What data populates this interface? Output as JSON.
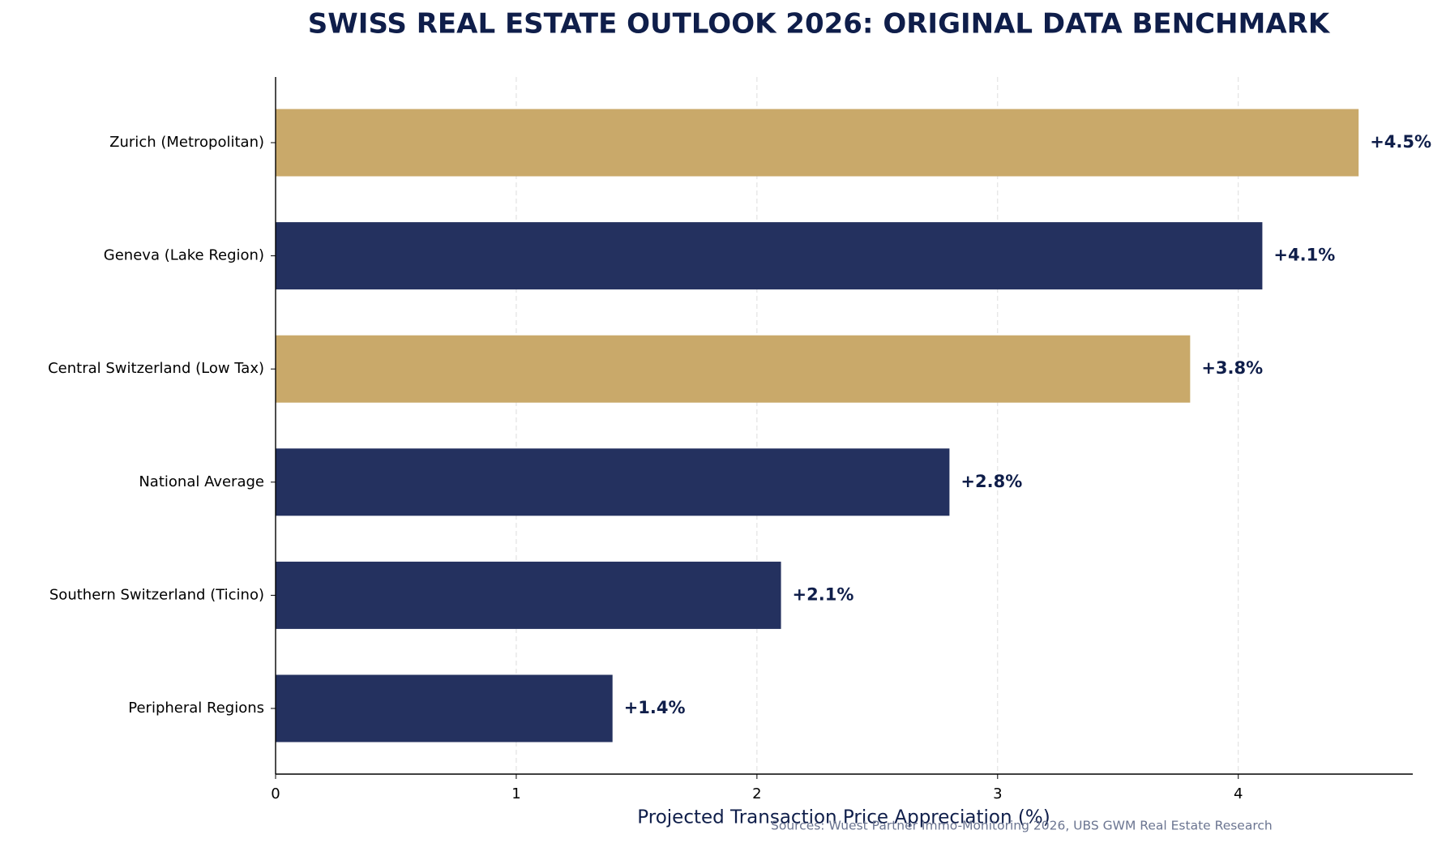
{
  "chart_data": {
    "type": "hbar",
    "title": "SWISS REAL ESTATE OUTLOOK 2026: ORIGINAL DATA BENCHMARK",
    "x_label": "Projected Transaction Price Appreciation (%)",
    "source": "Sources: Wuest Partner Immo-Monitoring 2026, UBS GWM Real Estate Research",
    "categories": [
      "Zurich (Metropolitan)",
      "Geneva (Lake Region)",
      "Central Switzerland (Low Tax)",
      "National Average",
      "Southern Switzerland (Ticino)",
      "Peripheral Regions"
    ],
    "values": [
      4.5,
      4.1,
      3.8,
      2.8,
      2.1,
      1.4
    ],
    "value_labels": [
      "+4.5%",
      "+4.1%",
      "+3.8%",
      "+2.8%",
      "+2.1%",
      "+1.4%"
    ],
    "colors": [
      "#c9a96a",
      "#24315f",
      "#c9a96a",
      "#24315f",
      "#24315f",
      "#24315f"
    ],
    "xlim": [
      0,
      4.725
    ],
    "xticks": [
      0,
      1,
      2,
      3,
      4
    ],
    "grid": true
  }
}
